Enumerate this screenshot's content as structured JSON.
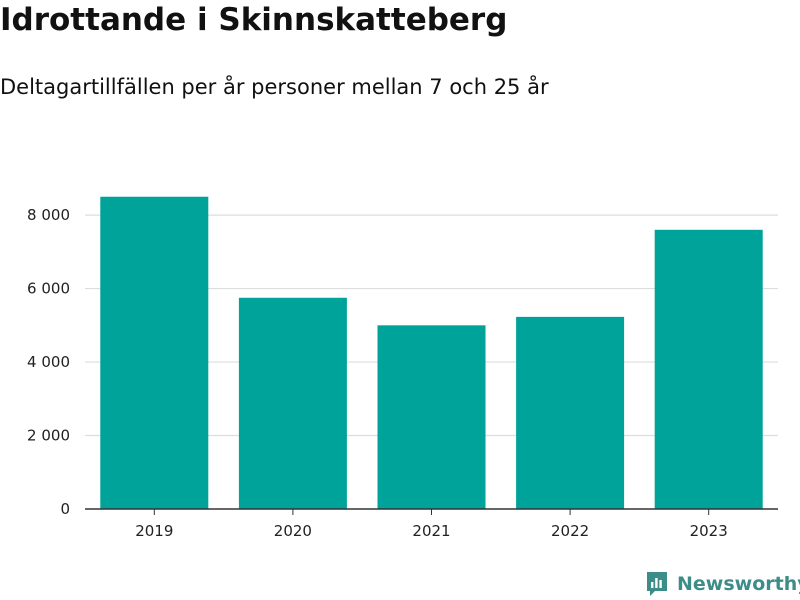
{
  "title": "Idrottande i Skinnskatteberg",
  "subtitle": "Deltagartillfällen per år personer mellan 7 och 25 år",
  "brand": {
    "name": "Newsworthy",
    "logo_icon": "newsworthy-logo-icon",
    "color": "#3c8d88"
  },
  "chart_data": {
    "type": "bar",
    "categories": [
      "2019",
      "2020",
      "2021",
      "2022",
      "2023"
    ],
    "values": [
      8500,
      5750,
      5000,
      5230,
      7600
    ],
    "title": "Idrottande i Skinnskatteberg",
    "subtitle": "Deltagartillfällen per år personer mellan 7 och 25 år",
    "xlabel": "",
    "ylabel": "",
    "ylim": [
      0,
      9500
    ],
    "yticks": [
      0,
      2000,
      4000,
      6000,
      8000
    ],
    "ytick_labels": [
      "0",
      "2 000",
      "4 000",
      "6 000",
      "8 000"
    ],
    "grid": true,
    "legend": "none",
    "bar_color": "#00a39a",
    "grid_color": "#dddddd",
    "axis_color": "#333333"
  }
}
